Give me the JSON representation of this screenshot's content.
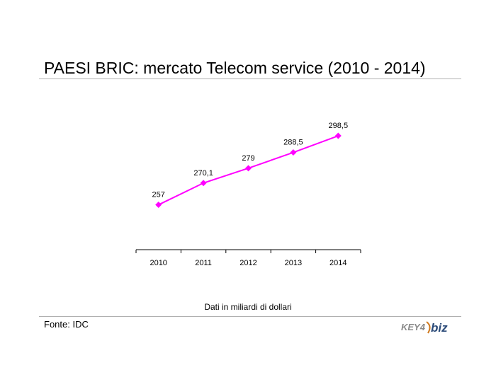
{
  "title": "PAESI BRIC: mercato Telecom service (2010 - 2014)",
  "note": "Dati in miliardi di dollari",
  "source": "Fonte: IDC",
  "logo": {
    "left": "KEY4",
    "right": "biz"
  },
  "colors": {
    "series": "#ff00ff",
    "rule": "#b0b0b0"
  },
  "chart_data": {
    "type": "line",
    "categories": [
      "2010",
      "2011",
      "2012",
      "2013",
      "2014"
    ],
    "values": [
      257,
      270.1,
      279,
      288.5,
      298.5
    ],
    "data_labels": [
      "257",
      "270,1",
      "279",
      "288,5",
      "298,5"
    ],
    "ylim": [
      230,
      310
    ],
    "grid": false,
    "legend": "none",
    "marker": "diamond"
  }
}
